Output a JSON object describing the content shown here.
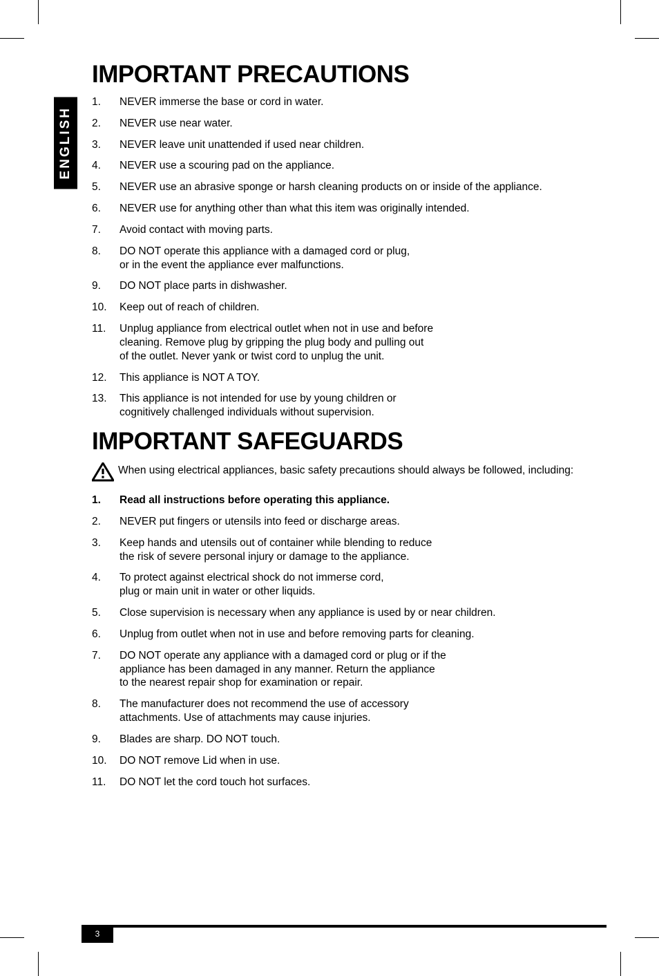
{
  "tab_label": "ENGLISH",
  "heading_precautions": "IMPORTANT PRECAUTIONS",
  "precautions": [
    {
      "n": "1.",
      "t": "NEVER immerse the base or cord in water."
    },
    {
      "n": "2.",
      "t": "NEVER use near water."
    },
    {
      "n": "3.",
      "t": "NEVER leave unit unattended if used near children."
    },
    {
      "n": "4.",
      "t": "NEVER use a scouring pad on the appliance."
    },
    {
      "n": "5.",
      "t": "NEVER use an abrasive sponge or harsh cleaning products on or inside of the appliance."
    },
    {
      "n": "6.",
      "t": "NEVER use for anything other than what this item was originally intended."
    },
    {
      "n": "7.",
      "t": "Avoid contact with moving parts."
    },
    {
      "n": "8.",
      "t": "DO NOT operate this appliance with a damaged cord or plug,\nor in the event the appliance ever malfunctions."
    },
    {
      "n": "9.",
      "t": "DO NOT place parts in dishwasher."
    },
    {
      "n": "10.",
      "t": "Keep out of reach of children."
    },
    {
      "n": "11.",
      "t": "Unplug appliance from electrical outlet when not in use and before\ncleaning. Remove plug by gripping the plug body and pulling out\nof the outlet. Never yank or twist cord to unplug the unit."
    },
    {
      "n": "12.",
      "t": "This appliance is NOT A TOY."
    },
    {
      "n": "13.",
      "t": "This appliance is not intended for use by young children or\ncognitively challenged individuals without supervision."
    }
  ],
  "heading_safeguards": "IMPORTANT SAFEGUARDS",
  "warning_intro": "When using electrical appliances, basic safety precautions should always be followed, including:",
  "safeguards": [
    {
      "n": "1.",
      "t": "Read all instructions before operating this appliance.",
      "bold": true
    },
    {
      "n": "2.",
      "t": "NEVER put fingers or utensils into feed or discharge areas."
    },
    {
      "n": "3.",
      "t": "Keep hands and utensils out of container while blending to reduce\nthe risk of severe personal injury or damage to the appliance."
    },
    {
      "n": "4.",
      "t": "To protect against electrical shock do not immerse cord,\nplug or main unit in water or other liquids."
    },
    {
      "n": "5.",
      "t": "Close supervision is necessary when any appliance is used by or near children."
    },
    {
      "n": "6.",
      "t": "Unplug from outlet when not in use and before removing parts for cleaning."
    },
    {
      "n": "7.",
      "t": "DO NOT operate any appliance with a damaged cord or plug or if the\nappliance has been damaged in any manner. Return the appliance\nto the nearest repair shop for examination or repair."
    },
    {
      "n": "8.",
      "t": "The manufacturer does not recommend the use of accessory\nattachments. Use of attachments may cause injuries."
    },
    {
      "n": "9.",
      "t": "Blades are sharp. DO NOT touch."
    },
    {
      "n": "10.",
      "t": "DO NOT remove Lid when in use."
    },
    {
      "n": "11.",
      "t": "DO NOT let the cord touch hot surfaces."
    }
  ],
  "page_number": "3"
}
